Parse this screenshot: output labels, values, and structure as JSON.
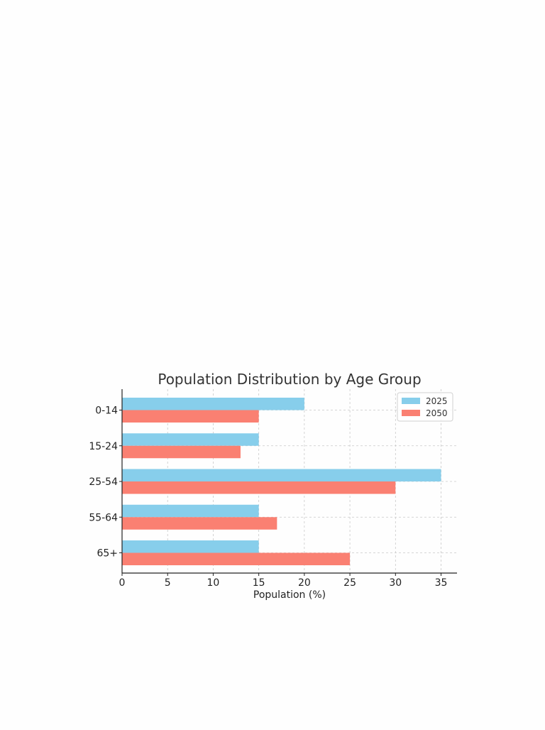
{
  "chart_data": {
    "type": "bar",
    "orientation": "horizontal",
    "title": "Population Distribution by Age Group",
    "xlabel": "Population (%)",
    "ylabel": "",
    "categories": [
      "0-14",
      "15-24",
      "25-54",
      "55-64",
      "65+"
    ],
    "series": [
      {
        "name": "2025",
        "color": "#87ceeb",
        "values": [
          20,
          15,
          35,
          15,
          15
        ]
      },
      {
        "name": "2050",
        "color": "#fa8072",
        "values": [
          15,
          13,
          30,
          17,
          25
        ]
      }
    ],
    "xlim": [
      0,
      36.75
    ],
    "xticks": [
      0,
      5,
      10,
      15,
      20,
      25,
      30,
      35
    ],
    "grid": true,
    "legend": "top-right"
  }
}
